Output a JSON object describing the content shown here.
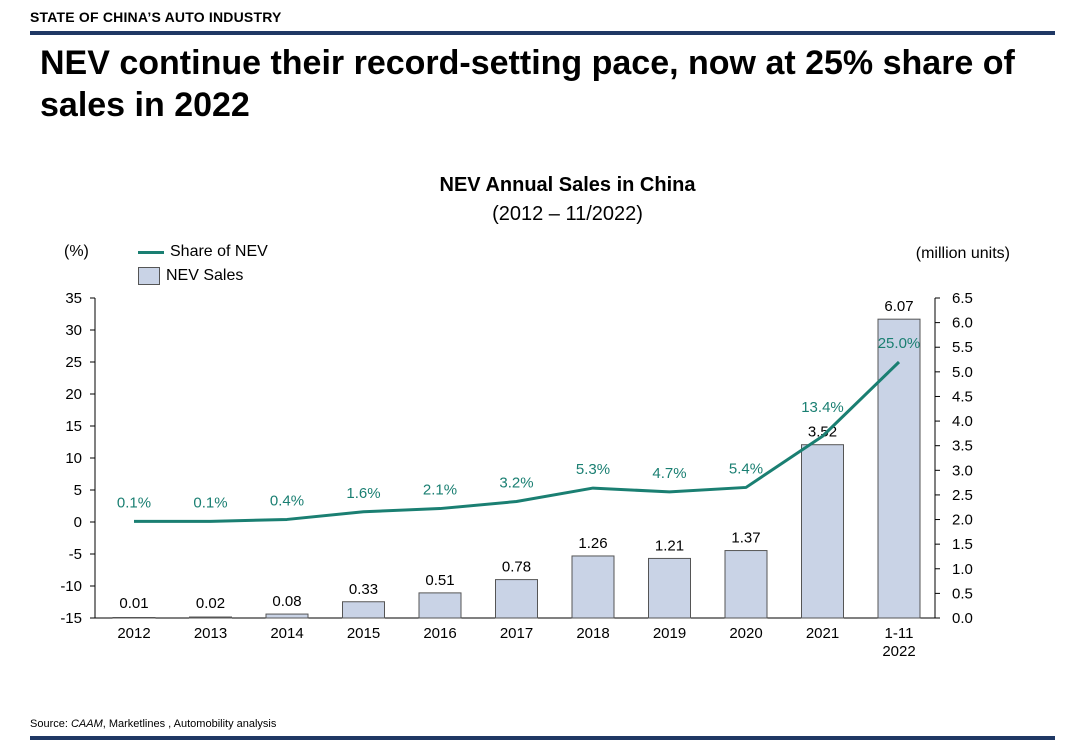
{
  "header": {
    "section_label": "STATE OF CHINA’S AUTO INDUSTRY",
    "headline": "NEV continue their record-setting pace, now at 25% share of sales in 2022"
  },
  "chart_data": {
    "type": "bar",
    "title": "NEV Annual Sales in China",
    "subtitle": "(2012 – 11/2022)",
    "left_axis_label": "(%)",
    "right_axis_label": "(million units)",
    "categories": [
      "2012",
      "2013",
      "2014",
      "2015",
      "2016",
      "2017",
      "2018",
      "2019",
      "2020",
      "2021",
      "1-11\n2022"
    ],
    "series": [
      {
        "name": "NEV Sales",
        "type": "bar",
        "axis": "right",
        "values": [
          0.01,
          0.02,
          0.08,
          0.33,
          0.51,
          0.78,
          1.26,
          1.21,
          1.37,
          3.52,
          6.07
        ],
        "labels": [
          "0.01",
          "0.02",
          "0.08",
          "0.33",
          "0.51",
          "0.78",
          "1.26",
          "1.21",
          "1.37",
          "3.52",
          "6.07"
        ],
        "color": "#c9d3e6"
      },
      {
        "name": "Share of NEV",
        "type": "line",
        "axis": "left",
        "values": [
          0.1,
          0.1,
          0.4,
          1.6,
          2.1,
          3.2,
          5.3,
          4.7,
          5.4,
          13.4,
          25.0
        ],
        "labels": [
          "0.1%",
          "0.1%",
          "0.4%",
          "1.6%",
          "2.1%",
          "3.2%",
          "5.3%",
          "4.7%",
          "5.4%",
          "13.4%",
          "25.0%"
        ],
        "color": "#1a7f72"
      }
    ],
    "left_axis": {
      "ticks": [
        "35",
        "30",
        "25",
        "20",
        "15",
        "10",
        "5",
        "0",
        "-5",
        "-10",
        "-15"
      ],
      "range": [
        -15,
        35
      ]
    },
    "right_axis": {
      "ticks": [
        "6.5",
        "6.0",
        "5.5",
        "5.0",
        "4.5",
        "4.0",
        "3.5",
        "3.0",
        "2.5",
        "2.0",
        "1.5",
        "1.0",
        "0.5",
        "0.0"
      ],
      "range": [
        0,
        6.5
      ]
    },
    "legend": {
      "position": "top-left",
      "entries": [
        "Share of NEV",
        "NEV Sales"
      ]
    },
    "grid": false
  },
  "footer": {
    "source_prefix": "Source: ",
    "source_italic": "CAAM",
    "source_rest": ", Marketlines , Automobility analysis"
  }
}
